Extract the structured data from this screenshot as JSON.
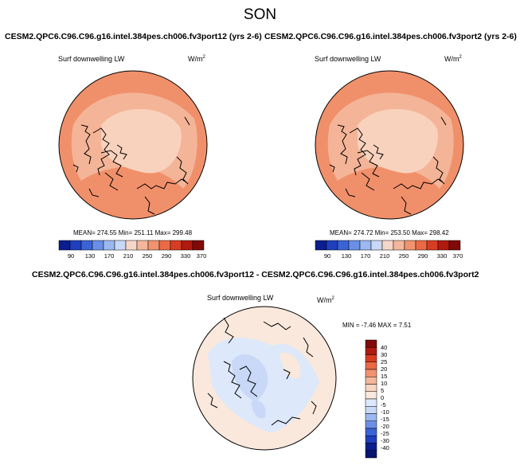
{
  "page_title": "SON",
  "panels": [
    {
      "case_title": "CESM2.QPC6.C96.C96.g16.intel.384pes.ch006.fv3port12 (yrs 2-6)",
      "variable": "Surf downwelling LW",
      "units_base": "W/m",
      "units_exp": "2",
      "stats": "MEAN= 274.55  Min= 251.11  Max= 299.48",
      "colorbar_ticks": [
        "90",
        "130",
        "170",
        "210",
        "250",
        "290",
        "330",
        "370"
      ]
    },
    {
      "case_title": "CESM2.QPC6.C96.C96.g16.intel.384pes.ch006.fv3port2 (yrs 2-6)",
      "variable": "Surf downwelling LW",
      "units_base": "W/m",
      "units_exp": "2",
      "stats": "MEAN= 274.72  Min= 253.50  Max= 298.42",
      "colorbar_ticks": [
        "90",
        "130",
        "170",
        "210",
        "250",
        "290",
        "330",
        "370"
      ]
    }
  ],
  "diff": {
    "title": "CESM2.QPC6.C96.C96.g16.intel.384pes.ch006.fv3port12 - CESM2.QPC6.C96.C96.g16.intel.384pes.ch006.fv3port2",
    "variable": "Surf downwelling LW",
    "units_base": "W/m",
    "units_exp": "2",
    "stats": "MIN = -7.46 MAX =  7.51",
    "colorbar_ticks": [
      "40",
      "30",
      "25",
      "20",
      "15",
      "10",
      "5",
      "0",
      "-5",
      "-10",
      "-15",
      "-20",
      "-25",
      "-30",
      "-40"
    ]
  },
  "colors": {
    "abs_scale": [
      "#0b1e8f",
      "#1f3fbf",
      "#3a63d6",
      "#6a8fe6",
      "#9bb8f0",
      "#c8d8f6",
      "#f6d6c6",
      "#f4b79d",
      "#f1936f",
      "#ea6a45",
      "#d83c22",
      "#b01a10",
      "#7f0a08"
    ],
    "diff_scale": [
      "#7f0a08",
      "#b01a10",
      "#d83c22",
      "#ea6a45",
      "#f1936f",
      "#f4b79d",
      "#f8d5c3",
      "#fbe8dc",
      "#dde8fa",
      "#c8d8f6",
      "#9bb8f0",
      "#6a8fe6",
      "#3a63d6",
      "#1f3fbf",
      "#0b1e8f",
      "#061470"
    ],
    "map_outer": "#f0906a",
    "map_mid": "#f4b497",
    "map_inner": "#f8d2bd",
    "diff_bg": "#fbe8dc",
    "diff_blue": "#dde8fa"
  }
}
